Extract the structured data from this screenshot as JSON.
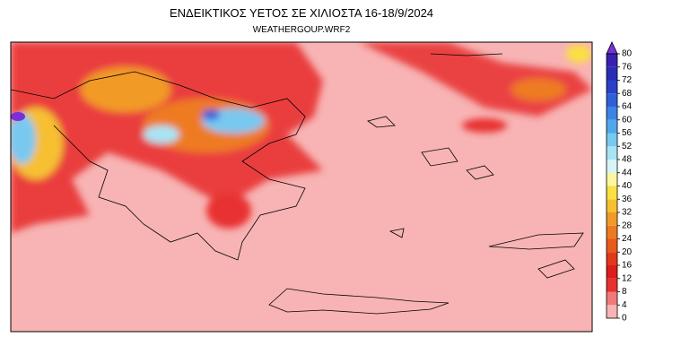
{
  "title": "ΕΝΔΕΙΚΤΙΚΟΣ ΥΕΤΟΣ ΣΕ ΧΙΛΙΟΣΤΑ 16-18/9/2024",
  "subtitle": "WEATHERGOUP.WRF2",
  "colorbar": {
    "ticks": [
      0,
      4,
      8,
      12,
      16,
      20,
      24,
      28,
      32,
      36,
      40,
      44,
      48,
      52,
      56,
      60,
      64,
      68,
      72,
      76,
      80
    ],
    "colors": [
      "#f8b4b4",
      "#f07a7a",
      "#e83030",
      "#dd1c1c",
      "#e03a1a",
      "#e85a1a",
      "#ee7a20",
      "#f29a28",
      "#f6c030",
      "#fae040",
      "#fbf6a0",
      "#d8f4f8",
      "#a8e4f4",
      "#78c8f0",
      "#50a8ec",
      "#3c84e4",
      "#3060d8",
      "#2a40c8",
      "#2a2cb8",
      "#3a20b0"
    ],
    "over_color": "#7a30d8"
  }
}
